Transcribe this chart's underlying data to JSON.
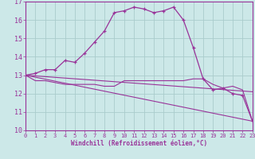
{
  "xlabel": "Windchill (Refroidissement éolien,°C)",
  "bg_color": "#cce8e8",
  "line_color": "#993399",
  "grid_color": "#aacccc",
  "xlim": [
    0,
    23
  ],
  "ylim": [
    10,
    17
  ],
  "yticks": [
    10,
    11,
    12,
    13,
    14,
    15,
    16,
    17
  ],
  "xticks": [
    0,
    1,
    2,
    3,
    4,
    5,
    6,
    7,
    8,
    9,
    10,
    11,
    12,
    13,
    14,
    15,
    16,
    17,
    18,
    19,
    20,
    21,
    22,
    23
  ],
  "curve1_x": [
    0,
    1,
    2,
    3,
    4,
    5,
    6,
    7,
    8,
    9,
    10,
    11,
    12,
    13,
    14,
    15,
    16,
    17,
    18,
    19,
    20,
    21,
    22,
    23
  ],
  "curve1_y": [
    13.0,
    13.1,
    13.3,
    13.3,
    13.8,
    13.7,
    14.2,
    14.8,
    15.4,
    16.4,
    16.5,
    16.7,
    16.6,
    16.4,
    16.5,
    16.7,
    16.0,
    14.5,
    12.8,
    12.2,
    12.3,
    12.0,
    11.9,
    10.5
  ],
  "curve2_x": [
    0,
    1,
    2,
    3,
    4,
    5,
    6,
    7,
    8,
    9,
    10,
    11,
    12,
    13,
    14,
    15,
    16,
    17,
    18,
    19,
    20,
    21,
    22,
    23
  ],
  "curve2_y": [
    13.0,
    12.7,
    12.7,
    12.6,
    12.5,
    12.5,
    12.5,
    12.5,
    12.4,
    12.4,
    12.7,
    12.7,
    12.7,
    12.7,
    12.7,
    12.7,
    12.7,
    12.8,
    12.8,
    12.5,
    12.3,
    12.4,
    12.2,
    10.5
  ],
  "curve3_x": [
    0,
    23
  ],
  "curve3_y": [
    13.0,
    10.5
  ],
  "curve4_x": [
    0,
    23
  ],
  "curve4_y": [
    13.0,
    12.1
  ]
}
